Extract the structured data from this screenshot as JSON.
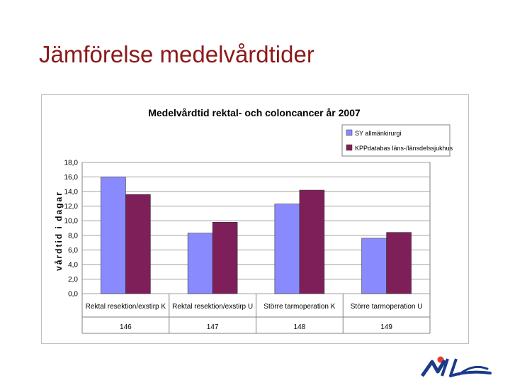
{
  "slide": {
    "title": "Jämförelse medelvårdtider"
  },
  "chart_data": {
    "type": "bar",
    "title": "Medelvårdtid rektal- och coloncancer år 2007",
    "xlabel": "",
    "ylabel": "vårdtid i dagar",
    "ylim": [
      0,
      18
    ],
    "yticks": [
      "0,0",
      "2,0",
      "4,0",
      "6,0",
      "8,0",
      "10,0",
      "12,0",
      "14,0",
      "16,0",
      "18,0"
    ],
    "grid": true,
    "legend_position": "top-right",
    "categories": [
      {
        "label": "Rektal resektion/exstirp K",
        "code": "146"
      },
      {
        "label": "Rektal resektion/exstirp U",
        "code": "147"
      },
      {
        "label": "Större tarmoperation K",
        "code": "148"
      },
      {
        "label": "Större tarmoperation U",
        "code": "149"
      }
    ],
    "series": [
      {
        "name": "SY allmänkirurgi",
        "color": "#8a8aff",
        "values": [
          16.0,
          8.3,
          12.3,
          7.6
        ]
      },
      {
        "name": "KPPdatabas läns-/länsdelssjukhus",
        "color": "#7f1f5a",
        "values": [
          13.6,
          9.8,
          14.2,
          8.4
        ]
      }
    ]
  }
}
